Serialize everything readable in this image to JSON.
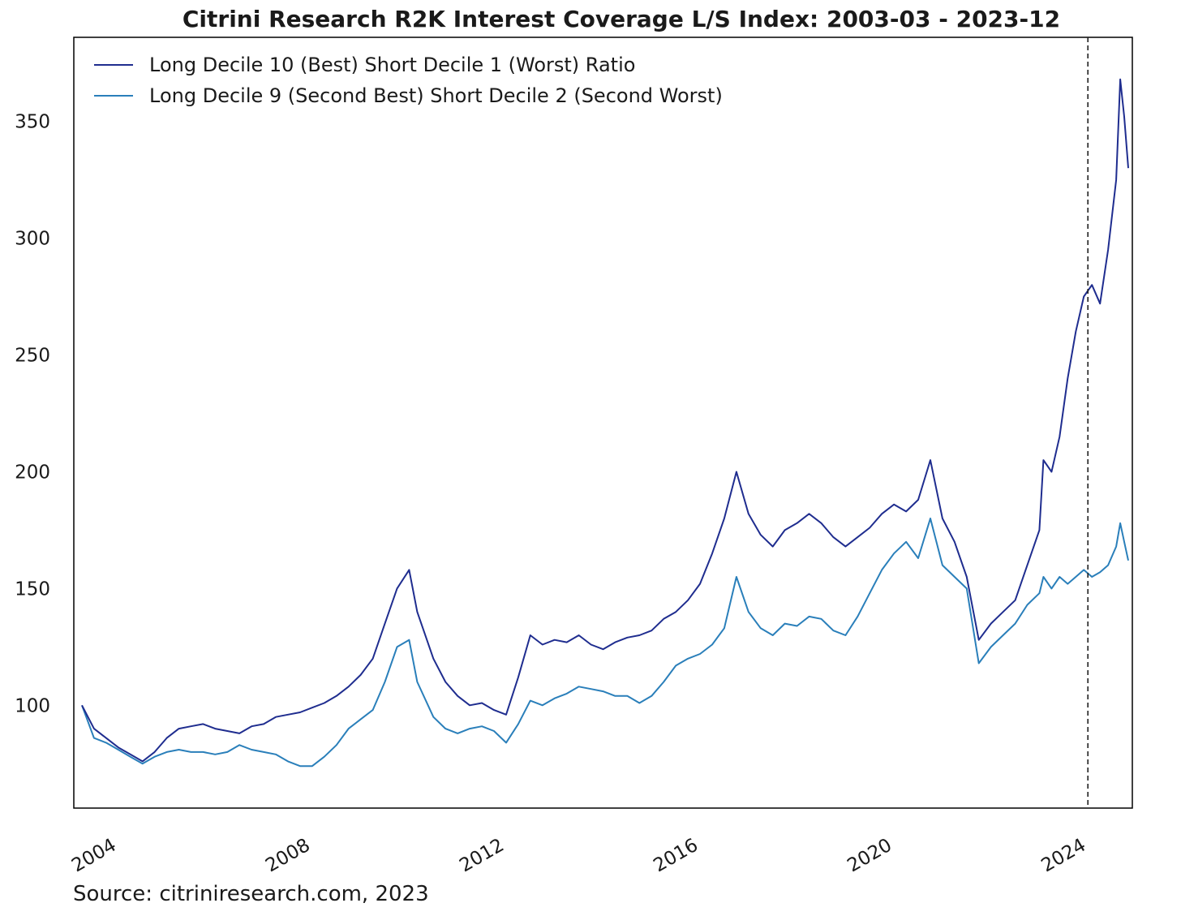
{
  "chart_data": {
    "type": "line",
    "title": "Citrini Research R2K Interest Coverage L/S Index: 2003-03 - 2023-12",
    "xlabel": "",
    "ylabel": "",
    "x_ticks": [
      "2004",
      "2008",
      "2012",
      "2016",
      "2020",
      "2024"
    ],
    "y_ticks": [
      "100",
      "150",
      "200",
      "250",
      "300",
      "350"
    ],
    "xlim": [
      "2003-01",
      "2024-11"
    ],
    "ylim": [
      56,
      386
    ],
    "grid": false,
    "legend_position": "top-left",
    "annotations": [
      {
        "type": "vertical-dashed-line",
        "x": "2023-12"
      }
    ],
    "source": "Source: citriniresearch.com, 2023",
    "series": [
      {
        "name": "Long Decile 10 (Best) Short Decile 1 (Worst) Ratio",
        "color": "#1f2d8f",
        "points": [
          [
            "2003-03",
            100
          ],
          [
            "2003-06",
            90
          ],
          [
            "2003-09",
            86
          ],
          [
            "2003-12",
            82
          ],
          [
            "2004-03",
            79
          ],
          [
            "2004-06",
            76
          ],
          [
            "2004-09",
            80
          ],
          [
            "2004-12",
            86
          ],
          [
            "2005-03",
            90
          ],
          [
            "2005-06",
            91
          ],
          [
            "2005-09",
            92
          ],
          [
            "2005-12",
            90
          ],
          [
            "2006-03",
            89
          ],
          [
            "2006-06",
            88
          ],
          [
            "2006-09",
            91
          ],
          [
            "2006-12",
            92
          ],
          [
            "2007-03",
            95
          ],
          [
            "2007-06",
            96
          ],
          [
            "2007-09",
            97
          ],
          [
            "2007-12",
            99
          ],
          [
            "2008-03",
            101
          ],
          [
            "2008-06",
            104
          ],
          [
            "2008-09",
            108
          ],
          [
            "2008-12",
            113
          ],
          [
            "2009-03",
            120
          ],
          [
            "2009-06",
            135
          ],
          [
            "2009-09",
            150
          ],
          [
            "2009-12",
            158
          ],
          [
            "2010-02",
            140
          ],
          [
            "2010-06",
            120
          ],
          [
            "2010-09",
            110
          ],
          [
            "2010-12",
            104
          ],
          [
            "2011-03",
            100
          ],
          [
            "2011-06",
            101
          ],
          [
            "2011-09",
            98
          ],
          [
            "2011-12",
            96
          ],
          [
            "2012-03",
            112
          ],
          [
            "2012-06",
            130
          ],
          [
            "2012-09",
            126
          ],
          [
            "2012-12",
            128
          ],
          [
            "2013-03",
            127
          ],
          [
            "2013-06",
            130
          ],
          [
            "2013-09",
            126
          ],
          [
            "2013-12",
            124
          ],
          [
            "2014-03",
            127
          ],
          [
            "2014-06",
            129
          ],
          [
            "2014-09",
            130
          ],
          [
            "2014-12",
            132
          ],
          [
            "2015-03",
            137
          ],
          [
            "2015-06",
            140
          ],
          [
            "2015-09",
            145
          ],
          [
            "2015-12",
            152
          ],
          [
            "2016-03",
            165
          ],
          [
            "2016-06",
            180
          ],
          [
            "2016-09",
            200
          ],
          [
            "2016-12",
            182
          ],
          [
            "2017-03",
            173
          ],
          [
            "2017-06",
            168
          ],
          [
            "2017-09",
            175
          ],
          [
            "2017-12",
            178
          ],
          [
            "2018-03",
            182
          ],
          [
            "2018-06",
            178
          ],
          [
            "2018-09",
            172
          ],
          [
            "2018-12",
            168
          ],
          [
            "2019-03",
            172
          ],
          [
            "2019-06",
            176
          ],
          [
            "2019-09",
            182
          ],
          [
            "2019-12",
            186
          ],
          [
            "2020-03",
            183
          ],
          [
            "2020-06",
            188
          ],
          [
            "2020-09",
            205
          ],
          [
            "2020-12",
            180
          ],
          [
            "2021-03",
            170
          ],
          [
            "2021-06",
            155
          ],
          [
            "2021-09",
            128
          ],
          [
            "2021-12",
            135
          ],
          [
            "2022-03",
            140
          ],
          [
            "2022-06",
            145
          ],
          [
            "2022-09",
            160
          ],
          [
            "2022-12",
            175
          ],
          [
            "2023-01",
            205
          ],
          [
            "2023-03",
            200
          ],
          [
            "2023-05",
            215
          ],
          [
            "2023-07",
            240
          ],
          [
            "2023-09",
            260
          ],
          [
            "2023-11",
            275
          ],
          [
            "2024-01",
            280
          ],
          [
            "2024-03",
            272
          ],
          [
            "2024-05",
            295
          ],
          [
            "2024-07",
            325
          ],
          [
            "2024-08",
            368
          ],
          [
            "2024-09",
            352
          ],
          [
            "2024-10",
            330
          ]
        ]
      },
      {
        "name": "Long Decile 9 (Second Best) Short Decile 2 (Second Worst)",
        "color": "#2a7fba",
        "points": [
          [
            "2003-03",
            100
          ],
          [
            "2003-06",
            86
          ],
          [
            "2003-09",
            84
          ],
          [
            "2003-12",
            81
          ],
          [
            "2004-03",
            78
          ],
          [
            "2004-06",
            75
          ],
          [
            "2004-09",
            78
          ],
          [
            "2004-12",
            80
          ],
          [
            "2005-03",
            81
          ],
          [
            "2005-06",
            80
          ],
          [
            "2005-09",
            80
          ],
          [
            "2005-12",
            79
          ],
          [
            "2006-03",
            80
          ],
          [
            "2006-06",
            83
          ],
          [
            "2006-09",
            81
          ],
          [
            "2006-12",
            80
          ],
          [
            "2007-03",
            79
          ],
          [
            "2007-06",
            76
          ],
          [
            "2007-09",
            74
          ],
          [
            "2007-12",
            74
          ],
          [
            "2008-03",
            78
          ],
          [
            "2008-06",
            83
          ],
          [
            "2008-09",
            90
          ],
          [
            "2008-12",
            94
          ],
          [
            "2009-03",
            98
          ],
          [
            "2009-06",
            110
          ],
          [
            "2009-09",
            125
          ],
          [
            "2009-12",
            128
          ],
          [
            "2010-02",
            110
          ],
          [
            "2010-06",
            95
          ],
          [
            "2010-09",
            90
          ],
          [
            "2010-12",
            88
          ],
          [
            "2011-03",
            90
          ],
          [
            "2011-06",
            91
          ],
          [
            "2011-09",
            89
          ],
          [
            "2011-12",
            84
          ],
          [
            "2012-03",
            92
          ],
          [
            "2012-06",
            102
          ],
          [
            "2012-09",
            100
          ],
          [
            "2012-12",
            103
          ],
          [
            "2013-03",
            105
          ],
          [
            "2013-06",
            108
          ],
          [
            "2013-09",
            107
          ],
          [
            "2013-12",
            106
          ],
          [
            "2014-03",
            104
          ],
          [
            "2014-06",
            104
          ],
          [
            "2014-09",
            101
          ],
          [
            "2014-12",
            104
          ],
          [
            "2015-03",
            110
          ],
          [
            "2015-06",
            117
          ],
          [
            "2015-09",
            120
          ],
          [
            "2015-12",
            122
          ],
          [
            "2016-03",
            126
          ],
          [
            "2016-06",
            133
          ],
          [
            "2016-09",
            155
          ],
          [
            "2016-12",
            140
          ],
          [
            "2017-03",
            133
          ],
          [
            "2017-06",
            130
          ],
          [
            "2017-09",
            135
          ],
          [
            "2017-12",
            134
          ],
          [
            "2018-03",
            138
          ],
          [
            "2018-06",
            137
          ],
          [
            "2018-09",
            132
          ],
          [
            "2018-12",
            130
          ],
          [
            "2019-03",
            138
          ],
          [
            "2019-06",
            148
          ],
          [
            "2019-09",
            158
          ],
          [
            "2019-12",
            165
          ],
          [
            "2020-03",
            170
          ],
          [
            "2020-06",
            163
          ],
          [
            "2020-09",
            180
          ],
          [
            "2020-12",
            160
          ],
          [
            "2021-03",
            155
          ],
          [
            "2021-06",
            150
          ],
          [
            "2021-09",
            118
          ],
          [
            "2021-12",
            125
          ],
          [
            "2022-03",
            130
          ],
          [
            "2022-06",
            135
          ],
          [
            "2022-09",
            143
          ],
          [
            "2022-12",
            148
          ],
          [
            "2023-01",
            155
          ],
          [
            "2023-03",
            150
          ],
          [
            "2023-05",
            155
          ],
          [
            "2023-07",
            152
          ],
          [
            "2023-09",
            155
          ],
          [
            "2023-11",
            158
          ],
          [
            "2024-01",
            155
          ],
          [
            "2024-03",
            157
          ],
          [
            "2024-05",
            160
          ],
          [
            "2024-07",
            168
          ],
          [
            "2024-08",
            178
          ],
          [
            "2024-09",
            170
          ],
          [
            "2024-10",
            162
          ]
        ]
      }
    ]
  }
}
